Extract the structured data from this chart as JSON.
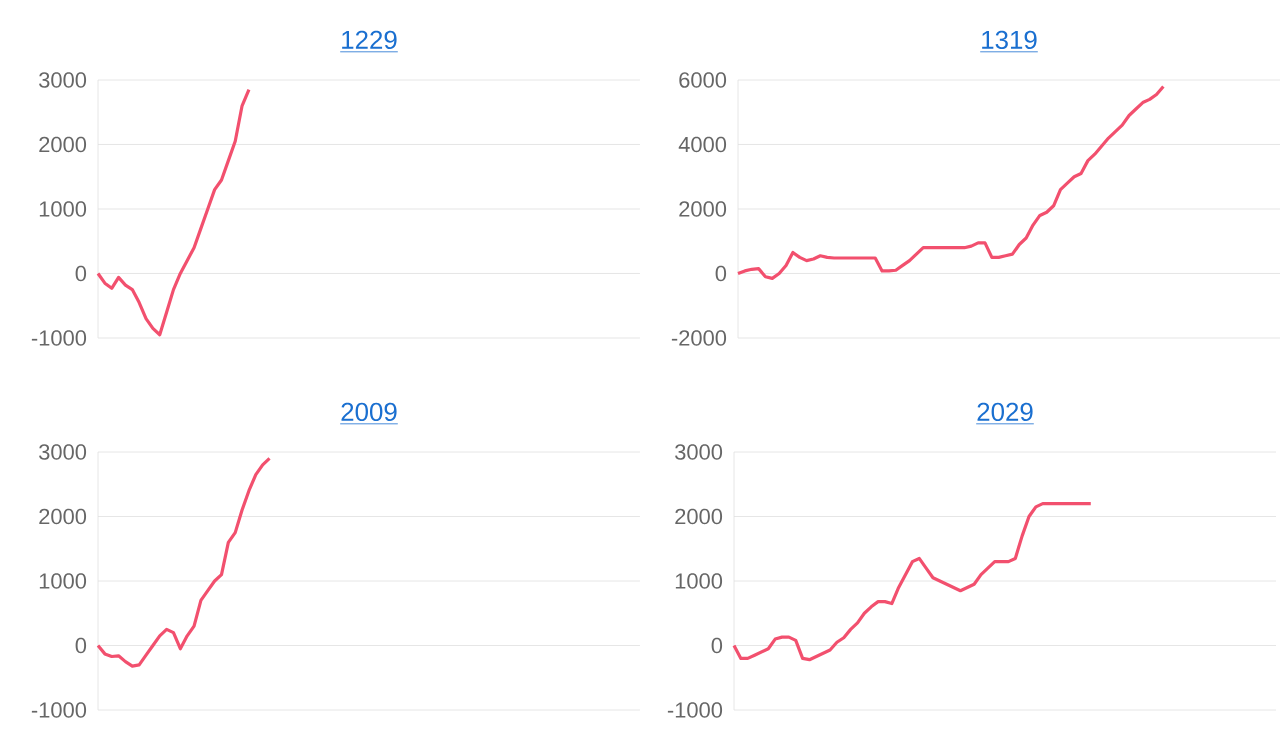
{
  "chart_data": [
    {
      "type": "line",
      "title": "1229",
      "grid": "y",
      "ylim": [
        -1000,
        3000
      ],
      "yticks": [
        -1000,
        0,
        1000,
        2000,
        3000
      ],
      "categories": [
        null,
        null,
        null,
        null,
        null,
        null,
        null,
        null,
        null,
        null,
        null,
        null,
        null,
        null,
        null,
        null,
        null,
        null,
        null,
        null,
        null,
        null,
        null,
        null,
        null,
        null,
        null,
        null,
        null,
        null,
        null,
        null,
        null,
        null,
        null,
        null,
        null,
        null,
        null,
        null,
        null,
        null,
        null,
        null,
        null,
        null,
        null,
        null,
        null,
        null,
        null,
        null,
        null,
        null,
        null,
        null,
        null,
        null,
        null,
        null,
        null,
        null,
        null,
        null,
        null,
        null,
        null,
        null,
        null,
        null,
        null,
        null,
        null,
        null,
        null,
        null,
        null,
        null,
        null,
        null
      ],
      "series": [
        {
          "color": "#f2506e",
          "values": [
            0,
            -150,
            -230,
            -60,
            -180,
            -250,
            -450,
            -700,
            -850,
            -950,
            -600,
            -250,
            0,
            200,
            400,
            700,
            1000,
            1300,
            1450,
            1750,
            2050,
            2600,
            2850,
            null,
            null,
            null,
            null,
            null,
            null,
            null,
            null,
            null,
            null,
            null,
            null,
            null,
            null,
            null,
            null,
            null,
            null,
            null,
            null,
            null,
            null,
            null,
            null,
            null,
            null,
            null,
            null,
            null,
            null,
            null,
            null,
            null,
            null,
            null,
            null,
            null,
            null,
            null,
            null,
            null,
            null,
            null,
            null,
            null,
            null,
            null,
            null,
            null,
            null,
            null,
            null,
            null,
            null,
            null,
            null,
            null
          ]
        }
      ]
    },
    {
      "type": "line",
      "title": "1319",
      "grid": "y",
      "ylim": [
        -2000,
        6000
      ],
      "yticks": [
        -2000,
        0,
        2000,
        4000,
        6000
      ],
      "categories": [
        null,
        null,
        null,
        null,
        null,
        null,
        null,
        null,
        null,
        null,
        null,
        null,
        null,
        null,
        null,
        null,
        null,
        null,
        null,
        null,
        null,
        null,
        null,
        null,
        null,
        null,
        null,
        null,
        null,
        null,
        null,
        null,
        null,
        null,
        null,
        null,
        null,
        null,
        null,
        null,
        null,
        null,
        null,
        null,
        null,
        null,
        null,
        null,
        null,
        null,
        null,
        null,
        null,
        null,
        null,
        null,
        null,
        null,
        null,
        null,
        null,
        null,
        null,
        null,
        null,
        null,
        null,
        null,
        null,
        null,
        null,
        null,
        null,
        null,
        null,
        null,
        null,
        null,
        null,
        null
      ],
      "series": [
        {
          "color": "#f2506e",
          "values": [
            0,
            80,
            130,
            150,
            -100,
            -150,
            0,
            250,
            650,
            500,
            400,
            450,
            550,
            500,
            480,
            480,
            480,
            480,
            480,
            480,
            480,
            80,
            80,
            100,
            250,
            400,
            600,
            800,
            800,
            800,
            800,
            800,
            800,
            800,
            850,
            950,
            950,
            500,
            500,
            550,
            600,
            900,
            1100,
            1500,
            1800,
            1900,
            2100,
            2600,
            2800,
            3000,
            3100,
            3500,
            3700,
            3950,
            4200,
            4400,
            4600,
            4900,
            5100,
            5300,
            5400,
            5550,
            5800,
            null,
            null,
            null,
            null,
            null,
            null,
            null,
            null,
            null,
            null,
            null,
            null,
            null,
            null,
            null,
            null,
            null
          ]
        }
      ]
    },
    {
      "type": "line",
      "title": "2009",
      "grid": "y",
      "ylim": [
        -1000,
        3000
      ],
      "yticks": [
        -1000,
        0,
        1000,
        2000,
        3000
      ],
      "categories": [
        null,
        null,
        null,
        null,
        null,
        null,
        null,
        null,
        null,
        null,
        null,
        null,
        null,
        null,
        null,
        null,
        null,
        null,
        null,
        null,
        null,
        null,
        null,
        null,
        null,
        null,
        null,
        null,
        null,
        null,
        null,
        null,
        null,
        null,
        null,
        null,
        null,
        null,
        null,
        null,
        null,
        null,
        null,
        null,
        null,
        null,
        null,
        null,
        null,
        null,
        null,
        null,
        null,
        null,
        null,
        null,
        null,
        null,
        null,
        null,
        null,
        null,
        null,
        null,
        null,
        null,
        null,
        null,
        null,
        null,
        null,
        null,
        null,
        null,
        null,
        null,
        null,
        null,
        null,
        null
      ],
      "series": [
        {
          "color": "#f2506e",
          "values": [
            0,
            -130,
            -170,
            -160,
            -250,
            -320,
            -300,
            -150,
            0,
            150,
            250,
            200,
            -50,
            150,
            300,
            700,
            850,
            1000,
            1100,
            1600,
            1750,
            2100,
            2400,
            2650,
            2800,
            2900,
            null,
            null,
            null,
            null,
            null,
            null,
            null,
            null,
            null,
            null,
            null,
            null,
            null,
            null,
            null,
            null,
            null,
            null,
            null,
            null,
            null,
            null,
            null,
            null,
            null,
            null,
            null,
            null,
            null,
            null,
            null,
            null,
            null,
            null,
            null,
            null,
            null,
            null,
            null,
            null,
            null,
            null,
            null,
            null,
            null,
            null,
            null,
            null,
            null,
            null,
            null,
            null,
            null,
            null
          ]
        }
      ]
    },
    {
      "type": "line",
      "title": "2029",
      "grid": "y",
      "ylim": [
        -1000,
        3000
      ],
      "yticks": [
        -1000,
        0,
        1000,
        2000,
        3000
      ],
      "categories": [
        null,
        null,
        null,
        null,
        null,
        null,
        null,
        null,
        null,
        null,
        null,
        null,
        null,
        null,
        null,
        null,
        null,
        null,
        null,
        null,
        null,
        null,
        null,
        null,
        null,
        null,
        null,
        null,
        null,
        null,
        null,
        null,
        null,
        null,
        null,
        null,
        null,
        null,
        null,
        null,
        null,
        null,
        null,
        null,
        null,
        null,
        null,
        null,
        null,
        null,
        null,
        null,
        null,
        null,
        null,
        null,
        null,
        null,
        null,
        null,
        null,
        null,
        null,
        null,
        null,
        null,
        null,
        null,
        null,
        null,
        null,
        null,
        null,
        null,
        null,
        null,
        null,
        null,
        null,
        null
      ],
      "series": [
        {
          "color": "#f2506e",
          "values": [
            0,
            -200,
            -200,
            -150,
            -100,
            -50,
            100,
            130,
            130,
            80,
            -200,
            -220,
            -170,
            -120,
            -70,
            50,
            120,
            250,
            350,
            500,
            600,
            680,
            680,
            650,
            900,
            1100,
            1300,
            1350,
            1200,
            1050,
            1000,
            950,
            900,
            850,
            900,
            950,
            1100,
            1200,
            1300,
            1300,
            1300,
            1350,
            1700,
            2000,
            2150,
            2200,
            2200,
            2200,
            2200,
            2200,
            2200,
            2200,
            2200,
            null,
            null,
            null,
            null,
            null,
            null,
            null,
            null,
            null,
            null,
            null,
            null,
            null,
            null,
            null,
            null,
            null,
            null,
            null,
            null,
            null,
            null,
            null,
            null,
            null,
            null,
            null
          ]
        }
      ]
    }
  ]
}
